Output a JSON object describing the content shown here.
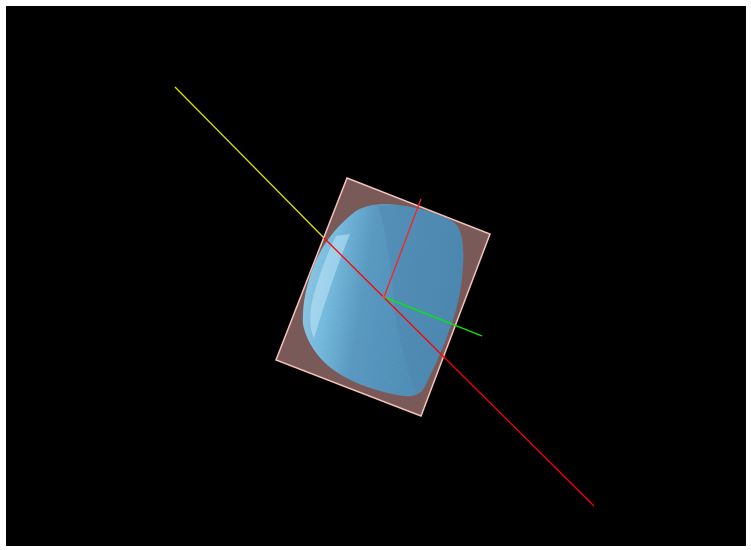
{
  "viewer": {
    "background_color": "#000000",
    "frame_color": "#ffffff",
    "colors": {
      "axis_principal_front": "#ff0000",
      "axis_principal_back": "#e0e000",
      "axis_secondary": "#ff2020",
      "axis_tertiary": "#00ee00",
      "bounding_box_fill": "#7a5a58",
      "bounding_box_stroke": "#f5c2bd",
      "specimen_fill": "#6fb6dc",
      "specimen_shade": "#4e8fb8",
      "specimen_highlight": "#9ed6f0"
    },
    "objects": [
      "specimen-volume",
      "oriented-bounding-box",
      "principal-axis",
      "secondary-axis",
      "tertiary-axis"
    ]
  }
}
